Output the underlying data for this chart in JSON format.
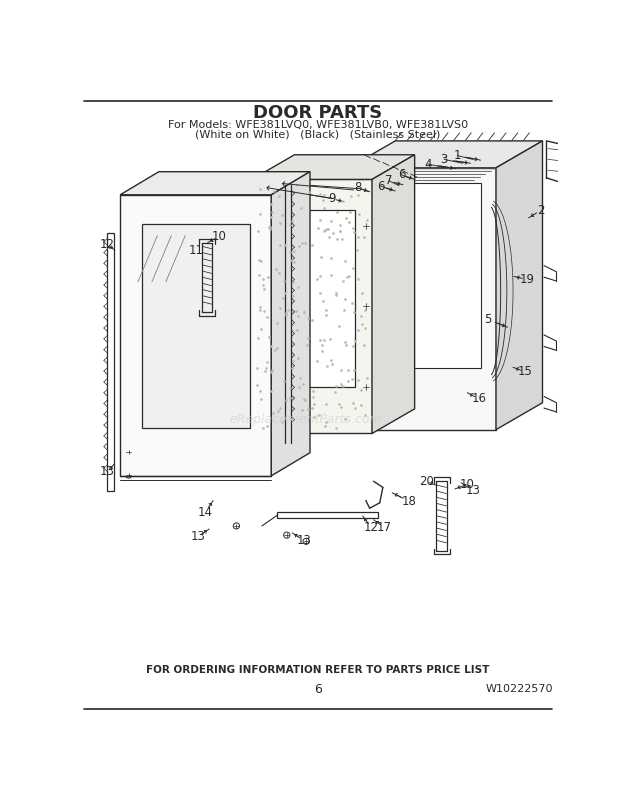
{
  "title": "DOOR PARTS",
  "subtitle1": "For Models: WFE381LVQ0, WFE381LVB0, WFE381LVS0",
  "subtitle2": "(White on White)   (Black)   (Stainless Steel)",
  "footer1": "FOR ORDERING INFORMATION REFER TO PARTS PRICE LIST",
  "footer_page": "6",
  "footer_model": "W10222570",
  "bg_color": "#ffffff",
  "lc": "#2a2a2a",
  "watermark": "eReplacementParts.com",
  "parts": [
    [
      "1",
      490,
      78
    ],
    [
      "2",
      598,
      148
    ],
    [
      "3",
      475,
      83
    ],
    [
      "4",
      455,
      88
    ],
    [
      "5",
      530,
      285
    ],
    [
      "6",
      415,
      103
    ],
    [
      "6",
      390,
      118
    ],
    [
      "7",
      400,
      110
    ],
    [
      "8",
      363,
      120
    ],
    [
      "9",
      330,
      133
    ],
    [
      "10",
      182,
      183
    ],
    [
      "10",
      502,
      505
    ],
    [
      "11",
      155,
      200
    ],
    [
      "12",
      38,
      192
    ],
    [
      "12",
      378,
      560
    ],
    [
      "13",
      38,
      488
    ],
    [
      "13",
      155,
      572
    ],
    [
      "13",
      293,
      577
    ],
    [
      "13",
      510,
      510
    ],
    [
      "14",
      165,
      540
    ],
    [
      "15",
      576,
      358
    ],
    [
      "16",
      516,
      393
    ],
    [
      "17",
      395,
      560
    ],
    [
      "18",
      428,
      525
    ],
    [
      "19",
      580,
      238
    ],
    [
      "20",
      450,
      500
    ]
  ]
}
